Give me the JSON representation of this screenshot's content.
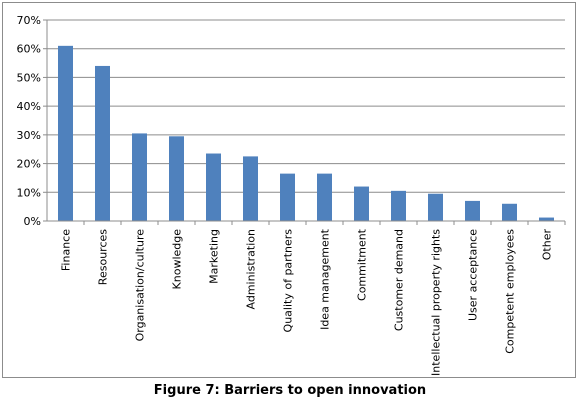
{
  "caption": "Figure 7: Barriers to open innovation",
  "chart_data": {
    "type": "bar",
    "title": "",
    "xlabel": "",
    "ylabel": "",
    "ylim": [
      0,
      70
    ],
    "yticks": [
      0,
      10,
      20,
      30,
      40,
      50,
      60,
      70
    ],
    "ytick_format": "percent",
    "grid": true,
    "legend": "none",
    "bar_color": "#4f81bd",
    "categories": [
      "Finance",
      "Resources",
      "Organisation/culture",
      "Knowledge",
      "Marketing",
      "Administration",
      "Quality of partners",
      "Idea management",
      "Commitment",
      "Customer demand",
      "Intellectual property rights",
      "User acceptance",
      "Competent employees",
      "Other"
    ],
    "series": [
      {
        "values": [
          61,
          54,
          30.5,
          29.5,
          23.5,
          22.5,
          16.5,
          16.5,
          12,
          10.5,
          9.5,
          7,
          6,
          1.2
        ]
      }
    ]
  }
}
